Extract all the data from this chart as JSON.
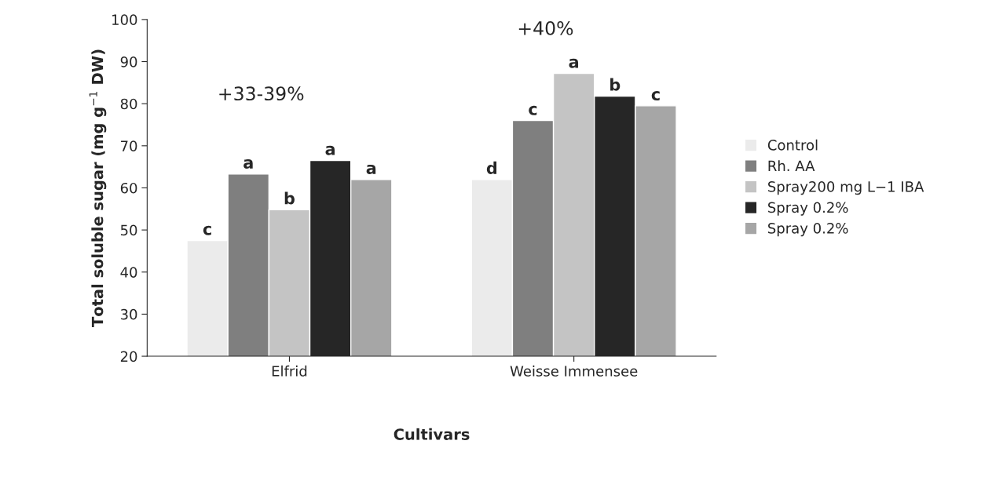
{
  "chart_data": {
    "type": "bar",
    "xlabel": "Cultivars",
    "ylabel": "Total soluble sugar (mg g$^{−1}$ DW)",
    "categories": [
      "Elfrid",
      "Weisse Immensee"
    ],
    "series": [
      {
        "name": "Control",
        "color": "#ebebeb",
        "values": [
          47.5,
          62
        ],
        "value_labels": [
          "c",
          "d"
        ]
      },
      {
        "name": "Rh. AA",
        "color": "#7f7f7f",
        "values": [
          63.3,
          76
        ],
        "value_labels": [
          "a",
          "c"
        ]
      },
      {
        "name": "Spray200 mg L−1 IBA",
        "color": "#c4c4c4",
        "values": [
          54.8,
          87.2
        ],
        "value_labels": [
          "b",
          "a"
        ]
      },
      {
        "name": "Spray 0.2%",
        "color": "#262626",
        "values": [
          66.5,
          81.8
        ],
        "value_labels": [
          "a",
          "b"
        ]
      },
      {
        "name": "Spray 0.2%",
        "color": "#a6a6a6",
        "values": [
          62,
          79.5
        ],
        "value_labels": [
          "a",
          "c"
        ]
      }
    ],
    "annotations": [
      "+33-39%",
      "+40%"
    ],
    "ylim": [
      20,
      100
    ],
    "yticks": [
      20,
      30,
      40,
      50,
      60,
      70,
      80,
      90,
      100
    ],
    "grid": false,
    "legend": "right"
  }
}
